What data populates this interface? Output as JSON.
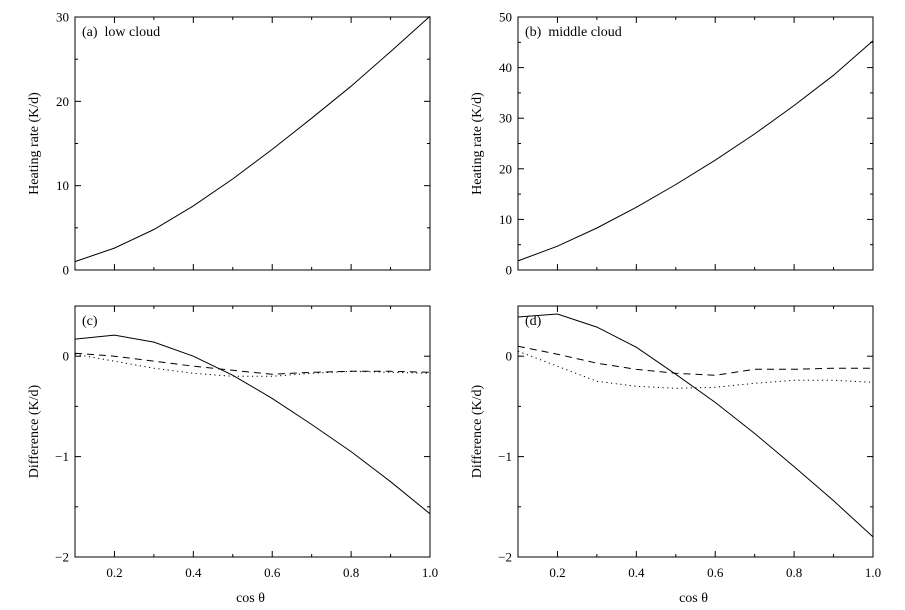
{
  "chart_data": [
    {
      "type": "line",
      "panel_label": "(a)  low cloud",
      "xlabel": "",
      "ylabel": "Heating  rate  (K/d)",
      "xlim": [
        0.1,
        1.0
      ],
      "ylim": [
        0,
        30
      ],
      "xticks": [
        0.2,
        0.4,
        0.6,
        0.8,
        1.0
      ],
      "xtick_labels": [],
      "yticks": [
        0,
        10,
        20,
        30
      ],
      "ytick_labels": [
        "0",
        "10",
        "20",
        "30"
      ],
      "x": [
        0.1,
        0.2,
        0.3,
        0.4,
        0.5,
        0.6,
        0.7,
        0.8,
        0.9,
        1.0
      ],
      "series": [
        {
          "style": "solid",
          "values": [
            1.0,
            2.6,
            4.8,
            7.6,
            10.8,
            14.3,
            18.0,
            21.8,
            25.9,
            30.1
          ]
        }
      ]
    },
    {
      "type": "line",
      "panel_label": "(b)  middle cloud",
      "xlabel": "",
      "ylabel": "Heating  rate  (K/d)",
      "xlim": [
        0.1,
        1.0
      ],
      "ylim": [
        0,
        50
      ],
      "xticks": [
        0.2,
        0.4,
        0.6,
        0.8,
        1.0
      ],
      "xtick_labels": [],
      "yticks": [
        0,
        10,
        20,
        30,
        40,
        50
      ],
      "ytick_labels": [
        "0",
        "10",
        "20",
        "30",
        "40",
        "50"
      ],
      "x": [
        0.1,
        0.2,
        0.3,
        0.4,
        0.5,
        0.6,
        0.7,
        0.8,
        0.9,
        1.0
      ],
      "series": [
        {
          "style": "solid",
          "values": [
            1.8,
            4.7,
            8.3,
            12.4,
            16.9,
            21.7,
            26.9,
            32.5,
            38.5,
            45.3
          ]
        }
      ]
    },
    {
      "type": "line",
      "panel_label": "(c)",
      "xlabel": "cos θ",
      "ylabel": "Difference  (K/d)",
      "xlim": [
        0.1,
        1.0
      ],
      "ylim": [
        -2,
        0.5
      ],
      "xticks": [
        0.2,
        0.4,
        0.6,
        0.8,
        1.0
      ],
      "xtick_labels": [
        "0.2",
        "0.4",
        "0.6",
        "0.8",
        "1.0"
      ],
      "yticks": [
        -2,
        -1,
        0
      ],
      "ytick_labels": [
        "−2",
        "−1",
        "0"
      ],
      "x": [
        0.1,
        0.2,
        0.3,
        0.4,
        0.5,
        0.6,
        0.7,
        0.8,
        0.9,
        1.0
      ],
      "series": [
        {
          "style": "solid",
          "values": [
            0.17,
            0.21,
            0.14,
            0.0,
            -0.19,
            -0.42,
            -0.68,
            -0.95,
            -1.25,
            -1.57
          ]
        },
        {
          "style": "dashed",
          "values": [
            0.03,
            0.0,
            -0.05,
            -0.1,
            -0.14,
            -0.18,
            -0.16,
            -0.15,
            -0.15,
            -0.16
          ]
        },
        {
          "style": "dotted",
          "values": [
            0.02,
            -0.05,
            -0.12,
            -0.17,
            -0.2,
            -0.2,
            -0.17,
            -0.15,
            -0.16,
            -0.17
          ]
        }
      ]
    },
    {
      "type": "line",
      "panel_label": "(d)",
      "xlabel": "cos θ",
      "ylabel": "Difference  (K/d)",
      "xlim": [
        0.1,
        1.0
      ],
      "ylim": [
        -2,
        0.5
      ],
      "xticks": [
        0.2,
        0.4,
        0.6,
        0.8,
        1.0
      ],
      "xtick_labels": [
        "0.2",
        "0.4",
        "0.6",
        "0.8",
        "1.0"
      ],
      "yticks": [
        -2,
        -1,
        0
      ],
      "ytick_labels": [
        "−2",
        "−1",
        "0"
      ],
      "x": [
        0.1,
        0.2,
        0.3,
        0.4,
        0.5,
        0.6,
        0.7,
        0.8,
        0.9,
        1.0
      ],
      "series": [
        {
          "style": "solid",
          "values": [
            0.39,
            0.42,
            0.29,
            0.09,
            -0.18,
            -0.46,
            -0.77,
            -1.1,
            -1.44,
            -1.8
          ]
        },
        {
          "style": "dashed",
          "values": [
            0.1,
            0.02,
            -0.07,
            -0.13,
            -0.17,
            -0.19,
            -0.13,
            -0.13,
            -0.12,
            -0.12
          ]
        },
        {
          "style": "dotted",
          "values": [
            0.05,
            -0.1,
            -0.25,
            -0.3,
            -0.32,
            -0.31,
            -0.27,
            -0.24,
            -0.24,
            -0.26
          ]
        }
      ]
    }
  ]
}
